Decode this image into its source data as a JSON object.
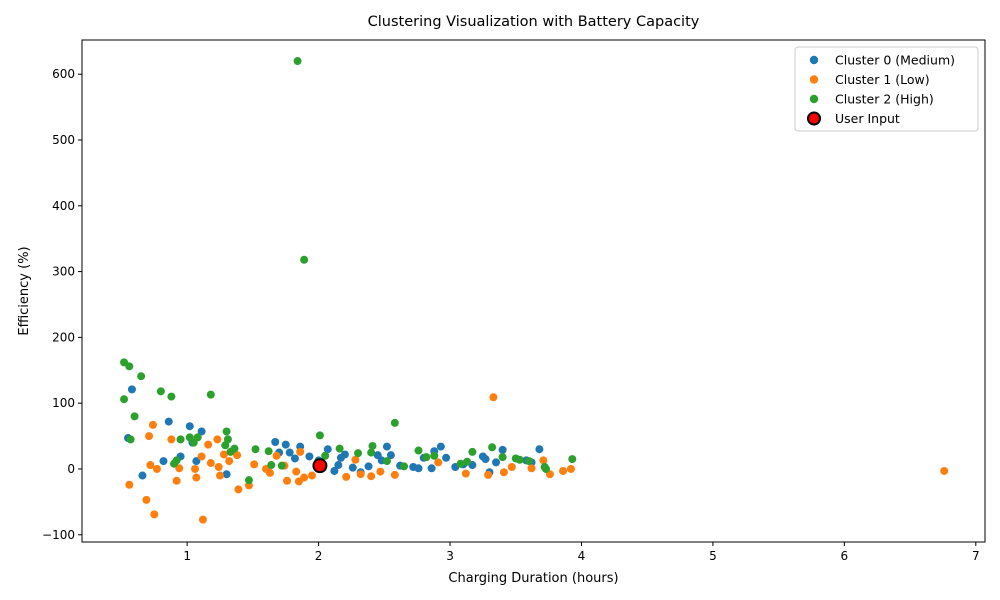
{
  "chart_data": {
    "type": "scatter",
    "title": "Clustering Visualization with Battery Capacity",
    "xlabel": "Charging Duration (hours)",
    "ylabel": "Efficiency (%)",
    "xlim": [
      0.2,
      7.07
    ],
    "ylim": [
      -111,
      652
    ],
    "xticks": [
      1,
      2,
      3,
      4,
      5,
      6,
      7
    ],
    "yticks": [
      -100,
      0,
      100,
      200,
      300,
      400,
      500,
      600
    ],
    "legend_position": "top-right",
    "grid": false,
    "series": [
      {
        "name": "Cluster 0 (Medium)",
        "color": "#1f77b4",
        "points": [
          [
            0.55,
            47
          ],
          [
            0.58,
            121
          ],
          [
            0.66,
            -10
          ],
          [
            0.82,
            12
          ],
          [
            0.86,
            72
          ],
          [
            0.95,
            19
          ],
          [
            1.02,
            65
          ],
          [
            1.04,
            40
          ],
          [
            1.07,
            12
          ],
          [
            1.11,
            57
          ],
          [
            1.3,
            -8
          ],
          [
            1.67,
            41
          ],
          [
            1.7,
            25
          ],
          [
            1.75,
            37
          ],
          [
            1.78,
            25
          ],
          [
            1.82,
            16
          ],
          [
            1.86,
            34
          ],
          [
            1.93,
            19
          ],
          [
            2.0,
            13
          ],
          [
            2.07,
            30
          ],
          [
            2.12,
            -3
          ],
          [
            2.15,
            6
          ],
          [
            2.17,
            17
          ],
          [
            2.2,
            22
          ],
          [
            2.26,
            2
          ],
          [
            2.32,
            -5
          ],
          [
            2.38,
            4
          ],
          [
            2.45,
            21
          ],
          [
            2.48,
            13
          ],
          [
            2.52,
            34
          ],
          [
            2.55,
            21
          ],
          [
            2.62,
            5
          ],
          [
            2.72,
            3
          ],
          [
            2.76,
            1
          ],
          [
            2.8,
            17
          ],
          [
            2.86,
            1
          ],
          [
            2.88,
            27
          ],
          [
            2.93,
            34
          ],
          [
            2.97,
            17
          ],
          [
            3.04,
            3
          ],
          [
            3.1,
            7
          ],
          [
            3.17,
            6
          ],
          [
            3.25,
            19
          ],
          [
            3.27,
            15
          ],
          [
            3.3,
            -5
          ],
          [
            3.35,
            10
          ],
          [
            3.4,
            29
          ],
          [
            3.58,
            13
          ],
          [
            3.62,
            10
          ],
          [
            3.68,
            30
          ]
        ]
      },
      {
        "name": "Cluster 1 (Low)",
        "color": "#ff7f0e",
        "points": [
          [
            0.56,
            -24
          ],
          [
            0.69,
            -47
          ],
          [
            0.71,
            50
          ],
          [
            0.72,
            6
          ],
          [
            0.74,
            67
          ],
          [
            0.75,
            -69
          ],
          [
            0.77,
            0
          ],
          [
            0.88,
            45
          ],
          [
            0.92,
            -18
          ],
          [
            0.94,
            1
          ],
          [
            1.06,
            0
          ],
          [
            1.07,
            -13
          ],
          [
            1.11,
            19
          ],
          [
            1.12,
            -77
          ],
          [
            1.16,
            37
          ],
          [
            1.18,
            9
          ],
          [
            1.23,
            45
          ],
          [
            1.24,
            3
          ],
          [
            1.25,
            -10
          ],
          [
            1.28,
            22
          ],
          [
            1.32,
            12
          ],
          [
            1.38,
            21
          ],
          [
            1.39,
            -31
          ],
          [
            1.47,
            -25
          ],
          [
            1.51,
            7
          ],
          [
            1.6,
            0
          ],
          [
            1.63,
            -6
          ],
          [
            1.68,
            20
          ],
          [
            1.74,
            5
          ],
          [
            1.76,
            -18
          ],
          [
            1.83,
            -4
          ],
          [
            1.85,
            -19
          ],
          [
            1.86,
            26
          ],
          [
            1.89,
            -13
          ],
          [
            1.95,
            -10
          ],
          [
            2.21,
            -12
          ],
          [
            2.28,
            14
          ],
          [
            2.32,
            -8
          ],
          [
            2.4,
            -11
          ],
          [
            2.47,
            -4
          ],
          [
            2.58,
            -9
          ],
          [
            2.91,
            10
          ],
          [
            3.12,
            -7
          ],
          [
            3.29,
            -9
          ],
          [
            3.33,
            109
          ],
          [
            3.41,
            -5
          ],
          [
            3.47,
            3
          ],
          [
            3.62,
            1
          ],
          [
            3.71,
            13
          ],
          [
            3.76,
            -8
          ],
          [
            3.86,
            -3
          ],
          [
            3.92,
            0
          ],
          [
            6.76,
            -3
          ]
        ]
      },
      {
        "name": "Cluster 2 (High)",
        "color": "#2ca02c",
        "points": [
          [
            0.52,
            106
          ],
          [
            0.52,
            162
          ],
          [
            0.56,
            156
          ],
          [
            0.57,
            45
          ],
          [
            0.6,
            80
          ],
          [
            0.65,
            141
          ],
          [
            0.8,
            118
          ],
          [
            0.88,
            110
          ],
          [
            0.9,
            8
          ],
          [
            0.92,
            13
          ],
          [
            0.95,
            45
          ],
          [
            1.02,
            48
          ],
          [
            1.05,
            40
          ],
          [
            1.08,
            48
          ],
          [
            1.18,
            113
          ],
          [
            1.29,
            36
          ],
          [
            1.3,
            57
          ],
          [
            1.31,
            45
          ],
          [
            1.33,
            26
          ],
          [
            1.36,
            31
          ],
          [
            1.47,
            -17
          ],
          [
            1.52,
            30
          ],
          [
            1.62,
            27
          ],
          [
            1.64,
            6
          ],
          [
            1.72,
            5
          ],
          [
            1.84,
            620
          ],
          [
            1.89,
            318
          ],
          [
            2.01,
            51
          ],
          [
            2.05,
            20
          ],
          [
            2.16,
            31
          ],
          [
            2.3,
            24
          ],
          [
            2.4,
            25
          ],
          [
            2.41,
            35
          ],
          [
            2.52,
            12
          ],
          [
            2.58,
            70
          ],
          [
            2.65,
            4
          ],
          [
            2.76,
            28
          ],
          [
            2.82,
            18
          ],
          [
            2.88,
            20
          ],
          [
            3.08,
            8
          ],
          [
            3.13,
            11
          ],
          [
            3.17,
            26
          ],
          [
            3.32,
            33
          ],
          [
            3.4,
            18
          ],
          [
            3.5,
            16
          ],
          [
            3.53,
            14
          ],
          [
            3.6,
            12
          ],
          [
            3.72,
            3
          ],
          [
            3.73,
            0
          ],
          [
            3.93,
            15
          ]
        ]
      },
      {
        "name": "User Input",
        "color": "#ff0000",
        "edge": "#000000",
        "points": [
          [
            2.01,
            5
          ]
        ]
      }
    ]
  }
}
